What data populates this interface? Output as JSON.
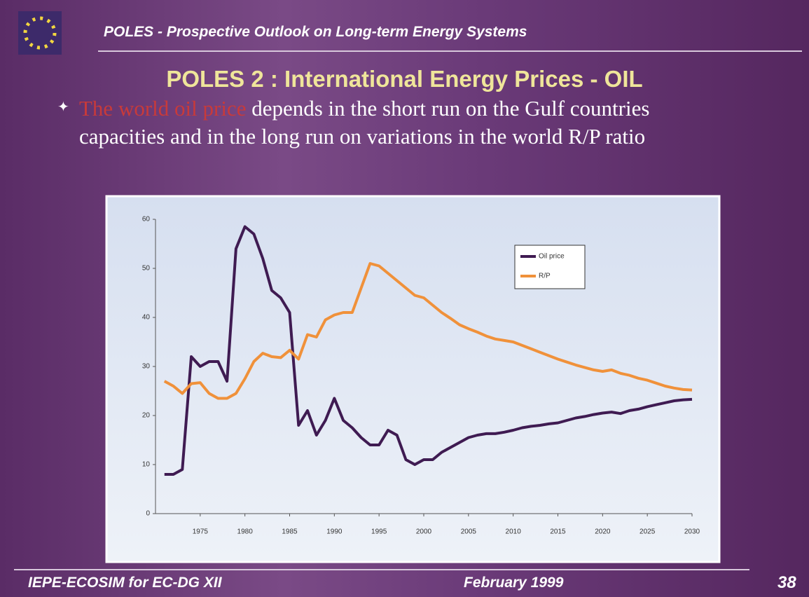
{
  "header": {
    "title": "POLES - Prospective Outlook on Long-term Energy Systems"
  },
  "slide": {
    "title": "POLES 2 : International Energy Prices - OIL",
    "bullet": {
      "highlight": "The world oil price",
      "text": "depends in the short run on the Gulf countries capacities and in the long run on variations in the world R/P ratio"
    }
  },
  "chart_data": {
    "type": "line",
    "x": [
      1971,
      1972,
      1973,
      1974,
      1975,
      1976,
      1977,
      1978,
      1979,
      1980,
      1981,
      1982,
      1983,
      1984,
      1985,
      1986,
      1987,
      1988,
      1989,
      1990,
      1991,
      1992,
      1993,
      1994,
      1995,
      1996,
      1997,
      1998,
      1999,
      2000,
      2001,
      2002,
      2003,
      2004,
      2005,
      2006,
      2007,
      2008,
      2009,
      2010,
      2011,
      2012,
      2013,
      2014,
      2015,
      2016,
      2017,
      2018,
      2019,
      2020,
      2021,
      2022,
      2023,
      2024,
      2025,
      2026,
      2027,
      2028,
      2029,
      2030
    ],
    "series": [
      {
        "name": "Oil price",
        "color": "#3f1b52",
        "values": [
          8,
          8,
          9,
          32,
          30,
          31,
          31,
          27,
          54,
          58.5,
          57,
          52,
          45.5,
          44,
          41,
          18,
          21,
          16,
          19,
          23.5,
          19,
          17.5,
          15.5,
          14,
          14,
          17,
          16,
          11,
          10,
          11,
          11,
          12.5,
          13.5,
          14.5,
          15.5,
          16,
          16.3,
          16.3,
          16.6,
          17,
          17.5,
          17.8,
          18,
          18.3,
          18.5,
          19,
          19.5,
          19.8,
          20.2,
          20.5,
          20.7,
          20.4,
          21,
          21.3,
          21.8,
          22.2,
          22.6,
          23,
          23.2,
          23.3
        ]
      },
      {
        "name": "R/P",
        "color": "#f0913a",
        "values": [
          27,
          26,
          24.5,
          26.5,
          26.7,
          24.5,
          23.5,
          23.5,
          24.5,
          27.5,
          31,
          32.7,
          32,
          31.8,
          33.3,
          31.5,
          36.5,
          36,
          39.5,
          40.5,
          41,
          41,
          46,
          51,
          50.5,
          49,
          47.5,
          46,
          44.5,
          44,
          42.5,
          41,
          39.8,
          38.5,
          37.7,
          37,
          36.2,
          35.6,
          35.3,
          35,
          34.3,
          33.6,
          32.9,
          32.2,
          31.5,
          30.9,
          30.3,
          29.8,
          29.3,
          29,
          29.3,
          28.6,
          28.2,
          27.6,
          27.2,
          26.6,
          26,
          25.6,
          25.3,
          25.2
        ]
      }
    ],
    "xlim": [
      1970,
      2030
    ],
    "xticks": [
      1975,
      1980,
      1985,
      1990,
      1995,
      2000,
      2005,
      2010,
      2015,
      2020,
      2025,
      2030
    ],
    "ylim": [
      0,
      60
    ],
    "yticks": [
      0,
      10,
      20,
      30,
      40,
      50,
      60
    ],
    "legend": "upper right"
  },
  "footer": {
    "left": "IEPE-ECOSIM  for EC-DG XII",
    "center": "February 1999",
    "page": "38"
  }
}
